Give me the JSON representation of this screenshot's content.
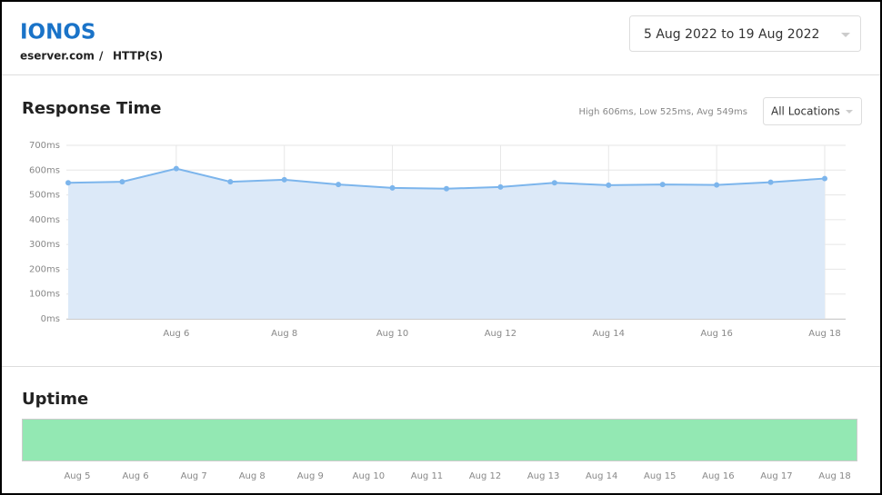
{
  "header": {
    "brand": "IONOS",
    "breadcrumb": {
      "site": "eserver.com",
      "separator": "/",
      "protocol": "HTTP(S)"
    },
    "date_range": "5 Aug 2022 to 19 Aug 2022"
  },
  "chart_data": {
    "type": "line",
    "title": "Response Time",
    "summary": "High 606ms, Low 525ms, Avg 549ms",
    "location_filter": "All Locations",
    "categories": [
      null,
      null,
      "Aug 6",
      null,
      "Aug 8",
      null,
      "Aug 10",
      null,
      "Aug 12",
      null,
      "Aug 14",
      null,
      "Aug 16",
      null,
      "Aug 18"
    ],
    "series": [
      {
        "name": "Response time",
        "color": "#7cb5ec",
        "values": [
          549,
          553,
          606,
          553,
          561,
          542,
          528,
          525,
          532,
          549,
          539,
          542,
          540,
          551,
          566
        ]
      }
    ],
    "ylim": [
      0,
      700
    ],
    "yticks": [
      {
        "value": 0,
        "label": "0ms"
      },
      {
        "value": 100,
        "label": "100ms"
      },
      {
        "value": 200,
        "label": "200ms"
      },
      {
        "value": 300,
        "label": "300ms"
      },
      {
        "value": 400,
        "label": "400ms"
      },
      {
        "value": 500,
        "label": "500ms"
      },
      {
        "value": 600,
        "label": "600ms"
      },
      {
        "value": 700,
        "label": "700ms"
      }
    ],
    "grid": true,
    "fill": "#dce9f8"
  },
  "uptime": {
    "title": "Uptime",
    "color": "#93e8b3",
    "categories": [
      "Aug 5",
      "Aug 6",
      "Aug 7",
      "Aug 8",
      "Aug 9",
      "Aug 10",
      "Aug 11",
      "Aug 12",
      "Aug 13",
      "Aug 14",
      "Aug 15",
      "Aug 16",
      "Aug 17",
      "Aug 18"
    ]
  }
}
